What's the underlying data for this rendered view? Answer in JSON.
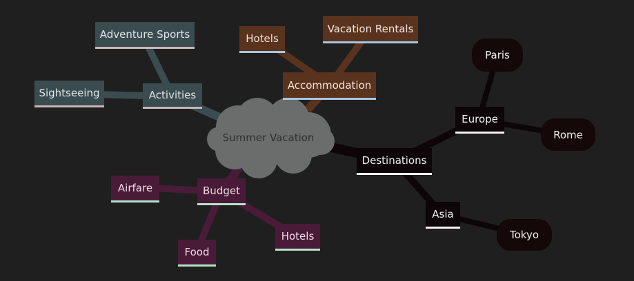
{
  "root": {
    "label": "Summer Vacation",
    "color": "#6b6d6d"
  },
  "branches": {
    "activities": {
      "label": "Activities",
      "color": "#3a4c4f",
      "children": [
        "Adventure Sports",
        "Sightseeing"
      ]
    },
    "accommodation": {
      "label": "Accommodation",
      "color": "#5a331f",
      "children": [
        "Hotels",
        "Vacation Rentals"
      ]
    },
    "budget": {
      "label": "Budget",
      "color": "#4a1b38",
      "children": [
        "Airfare",
        "Food",
        "Hotels"
      ]
    },
    "destinations": {
      "label": "Destinations",
      "color": "#0d0507",
      "children": [
        {
          "label": "Europe",
          "children": [
            "Paris",
            "Rome"
          ]
        },
        {
          "label": "Asia",
          "children": [
            "Tokyo"
          ]
        }
      ]
    }
  }
}
